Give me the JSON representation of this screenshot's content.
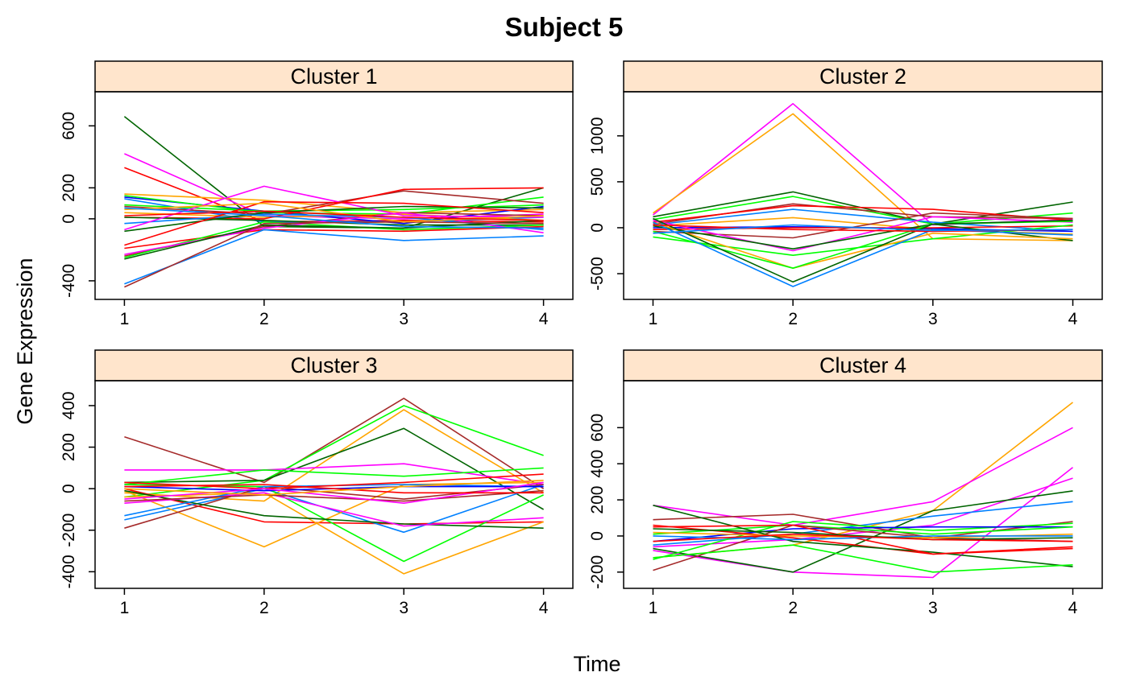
{
  "chart_data": {
    "type": "line",
    "title": "Subject 5",
    "xlabel": "Time",
    "ylabel": "Gene Expression",
    "x": [
      1,
      2,
      3,
      4
    ],
    "panels": [
      {
        "label": "Cluster 1",
        "ylim": [
          -520,
          820
        ],
        "yticks": [
          -400,
          0,
          200,
          600
        ],
        "series": [
          {
            "color": "#006400",
            "values": [
              660,
              -50,
              -60,
              200
            ]
          },
          {
            "color": "#ff00ff",
            "values": [
              420,
              20,
              0,
              30
            ]
          },
          {
            "color": "#ff0000",
            "values": [
              330,
              -20,
              -10,
              -20
            ]
          },
          {
            "color": "#ffa500",
            "values": [
              160,
              120,
              40,
              60
            ]
          },
          {
            "color": "#0000ff",
            "values": [
              140,
              50,
              -30,
              80
            ]
          },
          {
            "color": "#0080ff",
            "values": [
              130,
              -20,
              -20,
              10
            ]
          },
          {
            "color": "#00ff00",
            "values": [
              150,
              40,
              30,
              140
            ]
          },
          {
            "color": "#00ff00",
            "values": [
              90,
              50,
              60,
              90
            ]
          },
          {
            "color": "#a52a2a",
            "values": [
              80,
              30,
              180,
              100
            ]
          },
          {
            "color": "#ffa500",
            "values": [
              40,
              10,
              30,
              -10
            ]
          },
          {
            "color": "#ff0000",
            "values": [
              10,
              0,
              190,
              200
            ]
          },
          {
            "color": "#006400",
            "values": [
              10,
              -10,
              -40,
              -40
            ]
          },
          {
            "color": "#0080ff",
            "values": [
              -30,
              30,
              10,
              -70
            ]
          },
          {
            "color": "#ff00ff",
            "values": [
              -70,
              210,
              20,
              10
            ]
          },
          {
            "color": "#006400",
            "values": [
              -80,
              40,
              80,
              70
            ]
          },
          {
            "color": "#ff0000",
            "values": [
              -170,
              110,
              100,
              40
            ]
          },
          {
            "color": "#ff0000",
            "values": [
              -190,
              -70,
              -80,
              -50
            ]
          },
          {
            "color": "#a52a2a",
            "values": [
              -240,
              -50,
              40,
              20
            ]
          },
          {
            "color": "#00ff00",
            "values": [
              -250,
              -20,
              -70,
              -40
            ]
          },
          {
            "color": "#ff00ff",
            "values": [
              -230,
              -60,
              40,
              -90
            ]
          },
          {
            "color": "#006400",
            "values": [
              -260,
              -40,
              -60,
              -10
            ]
          },
          {
            "color": "#0080ff",
            "values": [
              -420,
              -70,
              -140,
              -110
            ]
          },
          {
            "color": "#a52a2a",
            "values": [
              -440,
              -30,
              -20,
              -30
            ]
          },
          {
            "color": "#ffa500",
            "values": [
              60,
              100,
              -20,
              20
            ]
          },
          {
            "color": "#0080ff",
            "values": [
              70,
              20,
              -50,
              -60
            ]
          },
          {
            "color": "#ff0000",
            "values": [
              20,
              50,
              10,
              -10
            ]
          }
        ]
      },
      {
        "label": "Cluster 2",
        "ylim": [
          -780,
          1480
        ],
        "yticks": [
          -500,
          0,
          500,
          1000
        ],
        "series": [
          {
            "color": "#ff00ff",
            "values": [
              140,
              1350,
              30,
              90
            ]
          },
          {
            "color": "#ffa500",
            "values": [
              160,
              1240,
              -120,
              -140
            ]
          },
          {
            "color": "#006400",
            "values": [
              120,
              390,
              40,
              280
            ]
          },
          {
            "color": "#00ff00",
            "values": [
              90,
              340,
              40,
              160
            ]
          },
          {
            "color": "#a52a2a",
            "values": [
              40,
              260,
              120,
              100
            ]
          },
          {
            "color": "#ff0000",
            "values": [
              60,
              240,
              200,
              80
            ]
          },
          {
            "color": "#0080ff",
            "values": [
              30,
              200,
              60,
              -40
            ]
          },
          {
            "color": "#ffa500",
            "values": [
              20,
              110,
              -20,
              -70
            ]
          },
          {
            "color": "#0000ff",
            "values": [
              0,
              10,
              -10,
              -40
            ]
          },
          {
            "color": "#ff0000",
            "values": [
              -20,
              0,
              0,
              20
            ]
          },
          {
            "color": "#a52a2a",
            "values": [
              -40,
              -110,
              160,
              100
            ]
          },
          {
            "color": "#ff00ff",
            "values": [
              80,
              -250,
              120,
              60
            ]
          },
          {
            "color": "#006400",
            "values": [
              20,
              -230,
              40,
              -140
            ]
          },
          {
            "color": "#00ff00",
            "values": [
              -100,
              -300,
              -120,
              30
            ]
          },
          {
            "color": "#ffa500",
            "values": [
              60,
              -440,
              -60,
              -120
            ]
          },
          {
            "color": "#00ff00",
            "values": [
              -40,
              -440,
              40,
              70
            ]
          },
          {
            "color": "#006400",
            "values": [
              100,
              -590,
              40,
              80
            ]
          },
          {
            "color": "#0080ff",
            "values": [
              60,
              -640,
              -20,
              -80
            ]
          },
          {
            "color": "#ff0000",
            "values": [
              30,
              -20,
              -40,
              -20
            ]
          },
          {
            "color": "#0080ff",
            "values": [
              -60,
              30,
              -30,
              -20
            ]
          }
        ]
      },
      {
        "label": "Cluster 3",
        "ylim": [
          -480,
          520
        ],
        "yticks": [
          -400,
          -200,
          0,
          200,
          400
        ],
        "series": [
          {
            "color": "#a52a2a",
            "values": [
              250,
              30,
              435,
              0
            ]
          },
          {
            "color": "#00ff00",
            "values": [
              -40,
              40,
              400,
              160
            ]
          },
          {
            "color": "#ffa500",
            "values": [
              -20,
              -60,
              380,
              -20
            ]
          },
          {
            "color": "#006400",
            "values": [
              30,
              40,
              290,
              -100
            ]
          },
          {
            "color": "#ff00ff",
            "values": [
              90,
              90,
              120,
              20
            ]
          },
          {
            "color": "#00ff00",
            "values": [
              20,
              90,
              60,
              100
            ]
          },
          {
            "color": "#ff0000",
            "values": [
              0,
              -160,
              -170,
              -160
            ]
          },
          {
            "color": "#0080ff",
            "values": [
              -150,
              0,
              -210,
              20
            ]
          },
          {
            "color": "#ffa500",
            "values": [
              -10,
              -280,
              20,
              30
            ]
          },
          {
            "color": "#00ff00",
            "values": [
              20,
              10,
              -350,
              -30
            ]
          },
          {
            "color": "#ffa500",
            "values": [
              -40,
              -20,
              -410,
              -160
            ]
          },
          {
            "color": "#a52a2a",
            "values": [
              -190,
              10,
              -50,
              20
            ]
          },
          {
            "color": "#006400",
            "values": [
              -10,
              -130,
              -170,
              -190
            ]
          },
          {
            "color": "#ff00ff",
            "values": [
              -70,
              -20,
              -180,
              -140
            ]
          },
          {
            "color": "#0080ff",
            "values": [
              -130,
              10,
              20,
              10
            ]
          },
          {
            "color": "#ff0000",
            "values": [
              30,
              0,
              30,
              70
            ]
          },
          {
            "color": "#0000ff",
            "values": [
              10,
              -10,
              10,
              10
            ]
          },
          {
            "color": "#a52a2a",
            "values": [
              -60,
              -30,
              -60,
              -10
            ]
          },
          {
            "color": "#ff00ff",
            "values": [
              -50,
              0,
              -70,
              30
            ]
          },
          {
            "color": "#ff0000",
            "values": [
              10,
              20,
              -20,
              -20
            ]
          },
          {
            "color": "#ffa500",
            "values": [
              0,
              -30,
              10,
              40
            ]
          }
        ]
      },
      {
        "label": "Cluster 4",
        "ylim": [
          -290,
          860
        ],
        "yticks": [
          -200,
          0,
          200,
          400,
          600
        ],
        "series": [
          {
            "color": "#ffa500",
            "values": [
              -120,
              -50,
              140,
              740
            ]
          },
          {
            "color": "#ff00ff",
            "values": [
              170,
              60,
              190,
              600
            ]
          },
          {
            "color": "#ff00ff",
            "values": [
              -80,
              -200,
              -230,
              380
            ]
          },
          {
            "color": "#ff00ff",
            "values": [
              -60,
              -20,
              60,
              320
            ]
          },
          {
            "color": "#006400",
            "values": [
              -70,
              -200,
              140,
              250
            ]
          },
          {
            "color": "#0080ff",
            "values": [
              -50,
              10,
              110,
              190
            ]
          },
          {
            "color": "#a52a2a",
            "values": [
              90,
              120,
              -10,
              80
            ]
          },
          {
            "color": "#00ff00",
            "values": [
              -130,
              80,
              30,
              70
            ]
          },
          {
            "color": "#0000ff",
            "values": [
              -30,
              40,
              50,
              50
            ]
          },
          {
            "color": "#00ff00",
            "values": [
              10,
              60,
              10,
              50
            ]
          },
          {
            "color": "#ff0000",
            "values": [
              60,
              -10,
              -100,
              -70
            ]
          },
          {
            "color": "#a52a2a",
            "values": [
              -190,
              60,
              -10,
              -30
            ]
          },
          {
            "color": "#006400",
            "values": [
              170,
              -30,
              -90,
              -170
            ]
          },
          {
            "color": "#00ff00",
            "values": [
              -120,
              -50,
              -200,
              -160
            ]
          },
          {
            "color": "#ff0000",
            "values": [
              50,
              60,
              -100,
              -60
            ]
          },
          {
            "color": "#ffa500",
            "values": [
              20,
              0,
              -10,
              10
            ]
          },
          {
            "color": "#0080ff",
            "values": [
              0,
              -20,
              0,
              0
            ]
          },
          {
            "color": "#006400",
            "values": [
              40,
              20,
              -20,
              -10
            ]
          },
          {
            "color": "#ff0000",
            "values": [
              -30,
              10,
              -20,
              -30
            ]
          }
        ]
      }
    ]
  }
}
